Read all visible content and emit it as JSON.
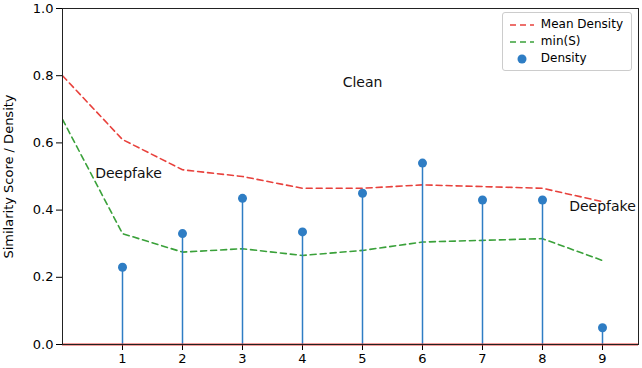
{
  "chart_data": {
    "type": "line",
    "y_label": "Similarity Score / Density",
    "xlim": [
      0,
      9.6
    ],
    "xticks": [
      1,
      2,
      3,
      4,
      5,
      6,
      7,
      8,
      9
    ],
    "ylim": [
      0,
      1
    ],
    "yticks": [
      {
        "value": 0,
        "label": "0.0"
      },
      0.2,
      0.4,
      0.6,
      0.8,
      {
        "value": 1,
        "label": "1.0"
      }
    ],
    "grid": false,
    "legend": "upper right",
    "series": [
      {
        "name": "Mean Density",
        "type": "line",
        "color": "#e8413c",
        "line_style": "dashed",
        "x": [
          0,
          1,
          2,
          3,
          4,
          5,
          6,
          7,
          8,
          9
        ],
        "values": [
          0.8,
          0.61,
          0.52,
          0.5,
          0.465,
          0.465,
          0.475,
          0.47,
          0.465,
          0.425
        ]
      },
      {
        "name": "min(S)",
        "type": "line",
        "color": "#3aa13a",
        "line_style": "dashed",
        "x": [
          0,
          1,
          2,
          3,
          4,
          5,
          6,
          7,
          8,
          9
        ],
        "values": [
          0.67,
          0.33,
          0.275,
          0.285,
          0.265,
          0.28,
          0.305,
          0.31,
          0.315,
          0.25
        ]
      },
      {
        "name": "Density",
        "type": "stem",
        "color": "#2e7dc4",
        "marker": "circle",
        "x": [
          1,
          2,
          3,
          4,
          5,
          6,
          7,
          8,
          9
        ],
        "values": [
          0.23,
          0.33,
          0.435,
          0.335,
          0.45,
          0.54,
          0.43,
          0.43,
          0.05
        ]
      }
    ],
    "annotations": [
      {
        "text": "Deepfake",
        "x": 1.1,
        "y": 0.51
      },
      {
        "text": "Clean",
        "x": 5.0,
        "y": 0.78
      },
      {
        "text": "Deepfake",
        "x": 9.0,
        "y": 0.41
      }
    ]
  }
}
